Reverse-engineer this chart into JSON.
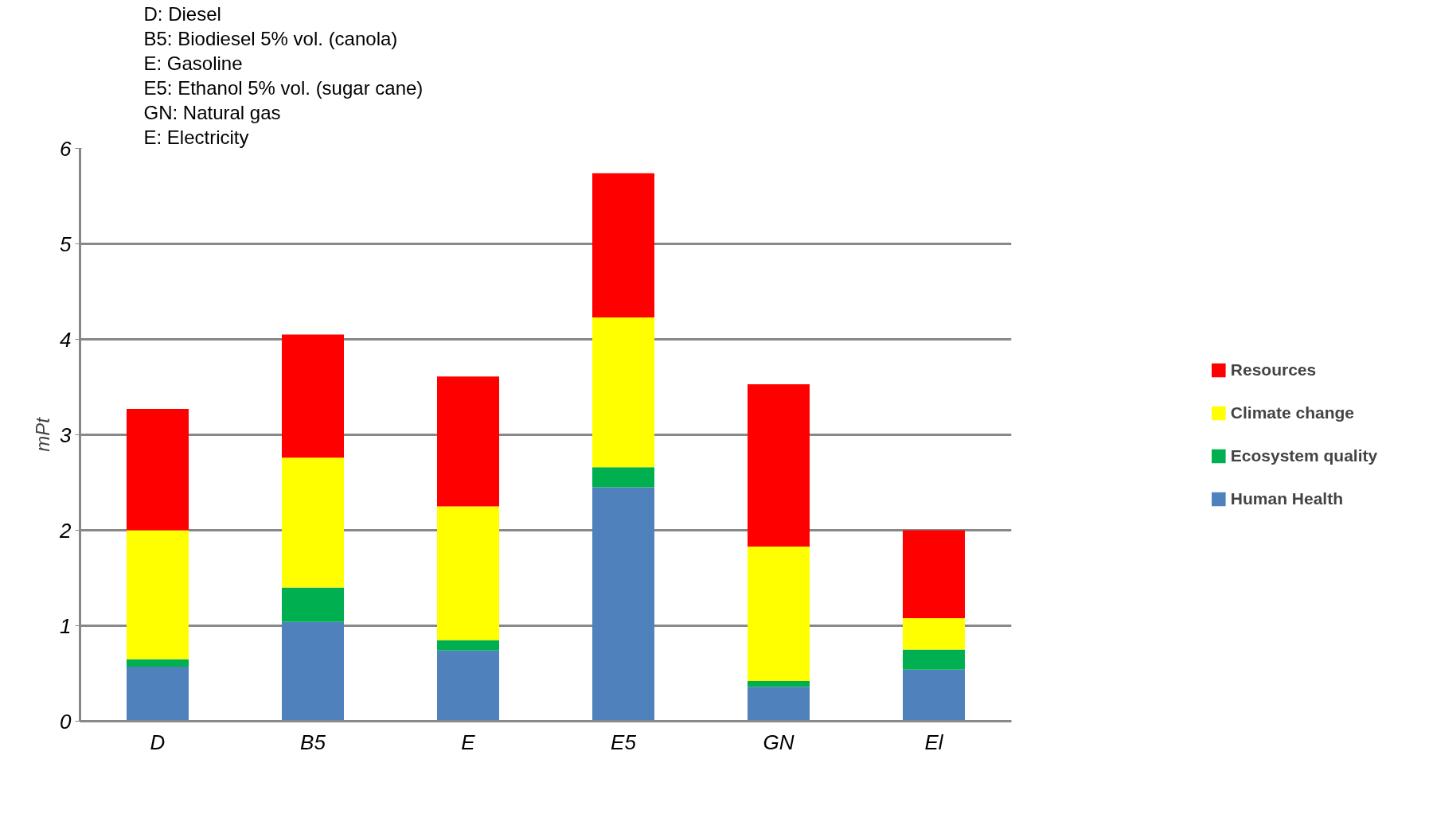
{
  "chart_data": {
    "type": "bar",
    "stacked": true,
    "ylabel": "mPt",
    "categories": [
      "D",
      "B5",
      "E",
      "E5",
      "GN",
      "El"
    ],
    "series": [
      {
        "name": "Human Health",
        "color": "#4f81bd",
        "values": [
          0.57,
          1.04,
          0.74,
          2.45,
          0.36,
          0.54
        ]
      },
      {
        "name": "Ecosystem quality",
        "color": "#00b050",
        "values": [
          0.08,
          0.36,
          0.11,
          0.21,
          0.06,
          0.21
        ]
      },
      {
        "name": "Climate change",
        "color": "#ffff00",
        "values": [
          1.35,
          1.36,
          1.4,
          1.57,
          1.41,
          0.33
        ]
      },
      {
        "name": "Resources",
        "color": "#ff0000",
        "values": [
          1.27,
          1.29,
          1.36,
          1.51,
          1.7,
          0.92
        ]
      }
    ],
    "ylim": [
      0,
      6
    ],
    "yticks": [
      0,
      1,
      2,
      3,
      4,
      5,
      6
    ],
    "grid": "y",
    "legend": "right",
    "annotations": [
      "D: Diesel",
      "B5: Biodiesel 5% vol. (canola)",
      "E: Gasoline",
      "E5: Ethanol 5% vol. (sugar cane)",
      "GN: Natural gas",
      "E: Electricity"
    ]
  }
}
